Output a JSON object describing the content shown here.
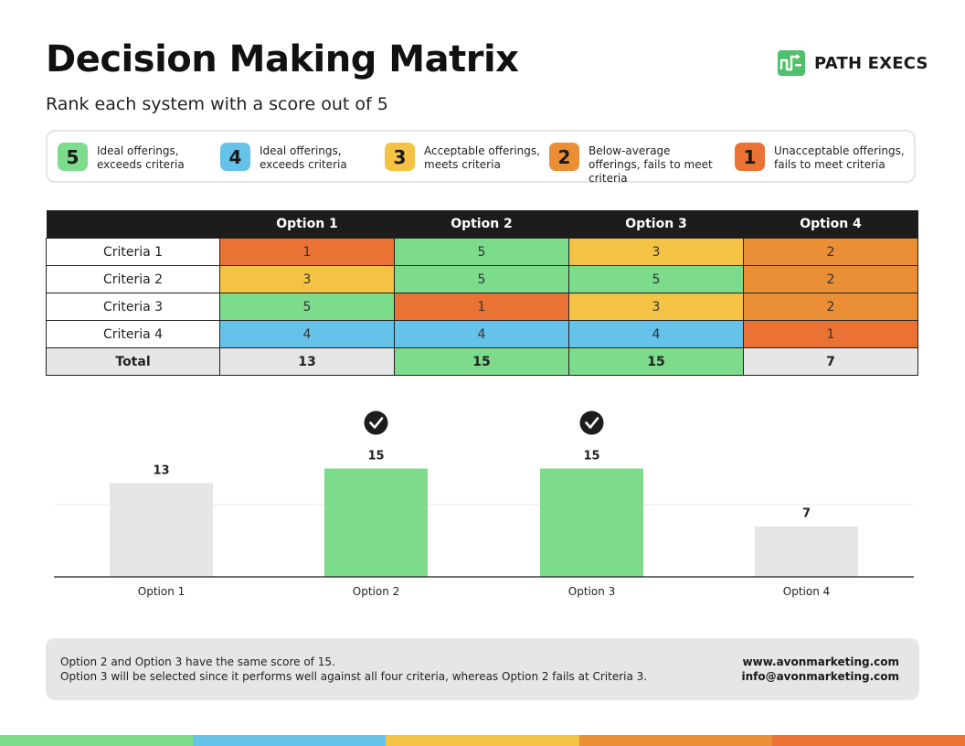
{
  "header": {
    "title": "Decision Making Matrix",
    "subtitle": "Rank each system with a score out of 5"
  },
  "brand": {
    "name": "PATH EXECS",
    "icon": "path-execs-logo-icon"
  },
  "colors": {
    "green": "#7ddc8c",
    "blue": "#65c2e9",
    "yellow": "#f4c244",
    "orange": "#ea8f36",
    "red_orange": "#e97234",
    "gray": "#e6e6e6",
    "dark": "#1c1c1c"
  },
  "legend": [
    {
      "score": "5",
      "line1": "Ideal offerings,",
      "line2": "exceeds criteria",
      "line3": "",
      "color": "#7ddc8c"
    },
    {
      "score": "4",
      "line1": "Ideal offerings,",
      "line2": "exceeds criteria",
      "line3": "",
      "color": "#65c2e9"
    },
    {
      "score": "3",
      "line1": "Acceptable offerings,",
      "line2": "meets criteria",
      "line3": "",
      "color": "#f4c244"
    },
    {
      "score": "2",
      "line1": "Below-average",
      "line2": "offerings, fails to meet",
      "line3": "criteria",
      "color": "#ea8f36"
    },
    {
      "score": "1",
      "line1": "Unacceptable offerings,",
      "line2": "fails to meet criteria",
      "line3": "",
      "color": "#e97234"
    }
  ],
  "matrix": {
    "columns": [
      "Option 1",
      "Option 2",
      "Option 3",
      "Option 4"
    ],
    "rows": [
      {
        "label": "Criteria 1",
        "values": [
          "1",
          "5",
          "3",
          "2"
        ]
      },
      {
        "label": "Criteria 2",
        "values": [
          "3",
          "5",
          "5",
          "2"
        ]
      },
      {
        "label": "Criteria 3",
        "values": [
          "5",
          "1",
          "3",
          "2"
        ]
      },
      {
        "label": "Criteria 4",
        "values": [
          "4",
          "4",
          "4",
          "1"
        ]
      }
    ],
    "total": {
      "label": "Total",
      "values": [
        "13",
        "15",
        "15",
        "7"
      ]
    },
    "score_colors": {
      "1": "#e97234",
      "2": "#ea8f36",
      "3": "#f4c244",
      "4": "#65c2e9",
      "5": "#7ddc8c"
    },
    "total_highlight_color": "#7ddc8c"
  },
  "chart_data": {
    "type": "bar",
    "categories": [
      "Option 1",
      "Option 2",
      "Option 3",
      "Option 4"
    ],
    "values": [
      13,
      15,
      15,
      7
    ],
    "selected": [
      false,
      true,
      true,
      false
    ],
    "selected_icon": "check-circle-icon",
    "title": "",
    "xlabel": "",
    "ylabel": "",
    "ylim": [
      0,
      20
    ],
    "grid": true,
    "bar_colors": [
      "#e6e6e6",
      "#7ddc8c",
      "#7ddc8c",
      "#e6e6e6"
    ]
  },
  "insight": {
    "line1": "Option 2 and Option 3 have the same score of 15.",
    "line2": "Option 3 will be selected since it performs well against all four criteria, whereas Option 2 fails at Criteria 3.",
    "website": "www.avonmarketing.com",
    "email": "info@avonmarketing.com"
  },
  "footer_stripe": [
    "#7ddc8c",
    "#65c2e9",
    "#f4c244",
    "#ea8f36",
    "#e97234"
  ]
}
